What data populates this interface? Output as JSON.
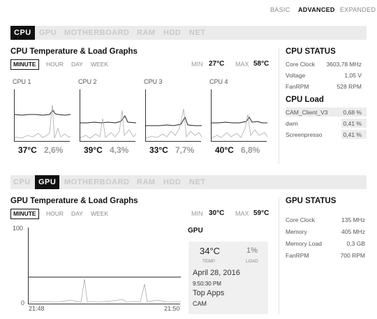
{
  "view_modes": {
    "basic": "BASIC",
    "advanced": "ADVANCED",
    "expanded": "EXPANDED"
  },
  "tabs": [
    "CPU",
    "GPU",
    "MOTHERBOARD",
    "RAM",
    "HDD",
    "NET"
  ],
  "cpu_section": {
    "title": "CPU Temperature & Load Graphs",
    "ranges": [
      "MINUTE",
      "HOUR",
      "DAY",
      "WEEK"
    ],
    "min_label": "MIN",
    "min_value": "27°C",
    "max_label": "MAX",
    "max_value": "58°C",
    "cores": [
      {
        "label": "CPU 1",
        "temp": "37°C",
        "load": "2,6%"
      },
      {
        "label": "CPU 2",
        "temp": "39°C",
        "load": "4,3%"
      },
      {
        "label": "CPU 3",
        "temp": "33°C",
        "load": "7,7%"
      },
      {
        "label": "CPU 4",
        "temp": "40°C",
        "load": "6,8%"
      }
    ]
  },
  "cpu_status": {
    "title": "CPU STATUS",
    "rows": [
      {
        "label": "Core Clock",
        "value": "3603,78 MHz"
      },
      {
        "label": "Voltage",
        "value": "1,05 V"
      },
      {
        "label": "FanRPM",
        "value": "528 RPM"
      }
    ],
    "load_title": "CPU Load",
    "processes": [
      {
        "name": "CAM_Client_V3",
        "value": "0,68 %"
      },
      {
        "name": "dwm",
        "value": "0,41 %"
      },
      {
        "name": "Screenpresso",
        "value": "0,41 %"
      }
    ]
  },
  "gpu_section": {
    "title": "GPU Temperature & Load Graphs",
    "ranges": [
      "MINUTE",
      "HOUR",
      "DAY",
      "WEEK"
    ],
    "min_label": "MIN",
    "min_value": "30°C",
    "max_label": "MAX",
    "max_value": "59°C",
    "y_top": "100",
    "y_bottom": "0",
    "x_start": "21:48",
    "x_end": "21:50",
    "card": {
      "heading": "GPU",
      "temp": "34°C",
      "temp_label": "TEMP",
      "load": "1%",
      "load_label": "LOAD",
      "date": "April 28, 2016",
      "time": "9:50:30 PM",
      "top_apps_label": "Top Apps",
      "top_app": "CAM"
    }
  },
  "gpu_status": {
    "title": "GPU STATUS",
    "rows": [
      {
        "label": "Core Clock",
        "value": "135 MHz"
      },
      {
        "label": "Memory",
        "value": "405 MHz"
      },
      {
        "label": "Memory Load",
        "value": "0,3 GB"
      },
      {
        "label": "FanRPM",
        "value": "700 RPM"
      }
    ]
  },
  "colors": {
    "accent": "#111111",
    "muted": "#999999",
    "panel": "#ebebeb"
  }
}
